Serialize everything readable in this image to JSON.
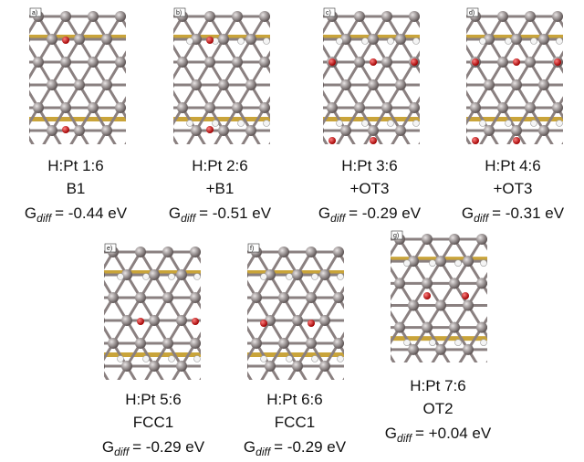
{
  "figure": {
    "gdiff_symbol": "G",
    "gdiff_subscript": "diff",
    "panels": [
      {
        "label": "a)",
        "ratio": "H:Pt 1:6",
        "site": "B1",
        "energy": "= -0.44 eV"
      },
      {
        "label": "b)",
        "ratio": "H:Pt 2:6",
        "site": "+B1",
        "energy": "= -0.51 eV"
      },
      {
        "label": "c)",
        "ratio": "H:Pt 3:6",
        "site": "+OT3",
        "energy": "= -0.29 eV"
      },
      {
        "label": "d)",
        "ratio": "H:Pt 4:6",
        "site": "+OT3",
        "energy": "= -0.31 eV"
      },
      {
        "label": "e)",
        "ratio": "H:Pt 5:6",
        "site": "FCC1",
        "energy": "= -0.29 eV"
      },
      {
        "label": "f)",
        "ratio": "H:Pt 6:6",
        "site": "FCC1",
        "energy": "= -0.29 eV"
      },
      {
        "label": "g)",
        "ratio": "H:Pt 7:6",
        "site": "OT2",
        "energy": "= +0.04 eV"
      }
    ]
  }
}
